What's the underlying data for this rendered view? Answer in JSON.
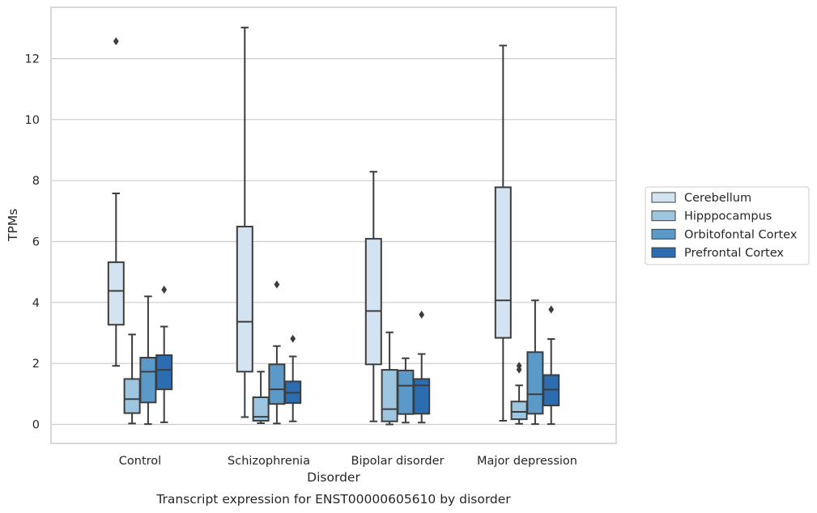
{
  "chart_data": {
    "type": "box",
    "title": "",
    "caption": "Transcript expression for ENST00000605610 by disorder",
    "xlabel": "Disorder",
    "ylabel": "TPMs",
    "ylim": [
      -0.6,
      13.75
    ],
    "yticks": [
      0,
      2,
      4,
      6,
      8,
      10,
      12
    ],
    "grid": "horizontal",
    "legend_position": "right",
    "categories": [
      "Control",
      "Schizophrenia",
      "Bipolar disorder",
      "Major depression"
    ],
    "series": [
      {
        "name": "Cerebellum",
        "color": "#d4e3f2",
        "boxes": [
          {
            "whisker_low": 1.92,
            "q1": 3.27,
            "median": 4.38,
            "q3": 5.32,
            "whisker_high": 7.58,
            "outliers": [
              12.57
            ]
          },
          {
            "whisker_low": 0.24,
            "q1": 1.73,
            "median": 3.37,
            "q3": 6.49,
            "whisker_high": 13.02,
            "outliers": []
          },
          {
            "whisker_low": 0.1,
            "q1": 1.97,
            "median": 3.72,
            "q3": 6.09,
            "whisker_high": 8.29,
            "outliers": []
          },
          {
            "whisker_low": 0.12,
            "q1": 2.84,
            "median": 4.07,
            "q3": 7.78,
            "whisker_high": 12.43,
            "outliers": []
          }
        ]
      },
      {
        "name": "Hipppocampus",
        "color": "#9ec6e0",
        "boxes": [
          {
            "whisker_low": 0.03,
            "q1": 0.37,
            "median": 0.83,
            "q3": 1.49,
            "whisker_high": 2.95,
            "outliers": []
          },
          {
            "whisker_low": 0.04,
            "q1": 0.12,
            "median": 0.25,
            "q3": 0.89,
            "whisker_high": 1.73,
            "outliers": []
          },
          {
            "whisker_low": 0.0,
            "q1": 0.1,
            "median": 0.5,
            "q3": 1.79,
            "whisker_high": 3.02,
            "outliers": []
          },
          {
            "whisker_low": 0.02,
            "q1": 0.17,
            "median": 0.41,
            "q3": 0.75,
            "whisker_high": 1.28,
            "outliers": [
              1.8,
              1.92
            ]
          }
        ]
      },
      {
        "name": "Orbitofontal Cortex",
        "color": "#5b9ac8",
        "boxes": [
          {
            "whisker_low": 0.01,
            "q1": 0.72,
            "median": 1.73,
            "q3": 2.19,
            "whisker_high": 4.2,
            "outliers": []
          },
          {
            "whisker_low": 0.03,
            "q1": 0.67,
            "median": 1.15,
            "q3": 1.97,
            "whisker_high": 2.57,
            "outliers": [
              4.59
            ]
          },
          {
            "whisker_low": 0.06,
            "q1": 0.34,
            "median": 1.27,
            "q3": 1.77,
            "whisker_high": 2.17,
            "outliers": []
          },
          {
            "whisker_low": 0.01,
            "q1": 0.35,
            "median": 0.99,
            "q3": 2.37,
            "whisker_high": 4.07,
            "outliers": []
          }
        ]
      },
      {
        "name": "Prefrontal Cortex",
        "color": "#2c6cb0",
        "boxes": [
          {
            "whisker_low": 0.07,
            "q1": 1.15,
            "median": 1.79,
            "q3": 2.27,
            "whisker_high": 3.21,
            "outliers": [
              4.42
            ]
          },
          {
            "whisker_low": 0.1,
            "q1": 0.7,
            "median": 1.04,
            "q3": 1.41,
            "whisker_high": 2.23,
            "outliers": [
              2.81
            ]
          },
          {
            "whisker_low": 0.06,
            "q1": 0.35,
            "median": 1.28,
            "q3": 1.49,
            "whisker_high": 2.31,
            "outliers": [
              3.6
            ]
          },
          {
            "whisker_low": 0.01,
            "q1": 0.62,
            "median": 1.14,
            "q3": 1.62,
            "whisker_high": 2.8,
            "outliers": [
              3.77
            ]
          }
        ]
      }
    ]
  }
}
